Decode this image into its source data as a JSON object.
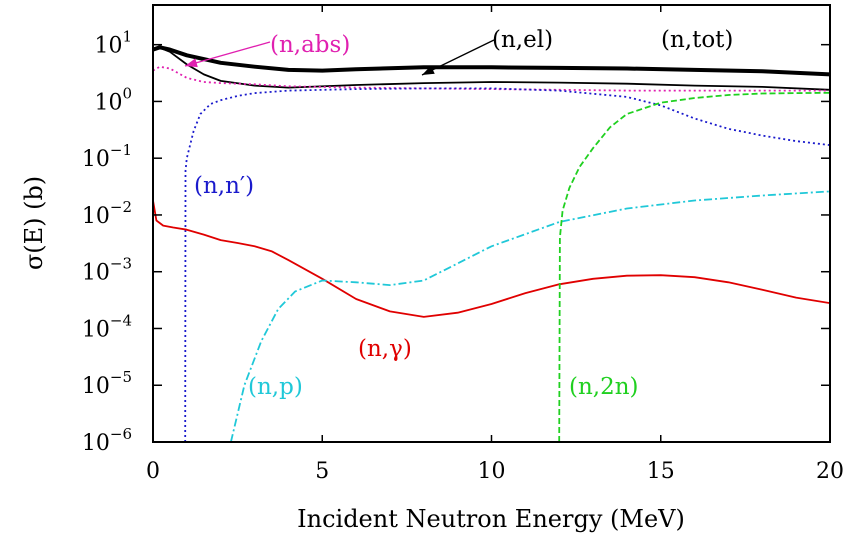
{
  "chart_data": {
    "type": "line",
    "title": "",
    "xlabel": "Incident Neutron Energy (MeV)",
    "ylabel": "σ(E) (b)",
    "xlim": [
      0,
      20
    ],
    "ylim": [
      1e-06,
      50
    ],
    "yscale": "log",
    "grid": false,
    "x_ticks": [
      {
        "value": 0,
        "label": "0"
      },
      {
        "value": 5,
        "label": "5"
      },
      {
        "value": 10,
        "label": "10"
      },
      {
        "value": 15,
        "label": "15"
      },
      {
        "value": 20,
        "label": "20"
      }
    ],
    "y_ticks": [
      {
        "value": 1e-06,
        "base": "10",
        "exp": "−6"
      },
      {
        "value": 1e-05,
        "base": "10",
        "exp": "−5"
      },
      {
        "value": 0.0001,
        "base": "10",
        "exp": "−4"
      },
      {
        "value": 0.001,
        "base": "10",
        "exp": "−3"
      },
      {
        "value": 0.01,
        "base": "10",
        "exp": "−2"
      },
      {
        "value": 0.1,
        "base": "10",
        "exp": "−1"
      },
      {
        "value": 1,
        "base": "10",
        "exp": "0"
      },
      {
        "value": 10,
        "base": "10",
        "exp": "1"
      }
    ],
    "series": [
      {
        "name": "(n,tot)",
        "color": "#000000",
        "dash": "solid",
        "width": "thick",
        "x": [
          0,
          0.2,
          0.5,
          1,
          2,
          3,
          4,
          5,
          6,
          8,
          10,
          12,
          14,
          16,
          18,
          20
        ],
        "y": [
          8.2,
          9.0,
          8.2,
          6.5,
          4.8,
          4.1,
          3.6,
          3.5,
          3.7,
          4.0,
          4.0,
          3.9,
          3.8,
          3.6,
          3.4,
          3.0
        ]
      },
      {
        "name": "(n,el)",
        "color": "#000000",
        "dash": "solid",
        "width": "thin",
        "x": [
          0,
          0.2,
          0.5,
          1,
          1.5,
          2,
          3,
          4,
          6,
          8,
          10,
          12,
          14,
          16,
          18,
          20
        ],
        "y": [
          8.0,
          8.8,
          7.5,
          4.5,
          3.0,
          2.3,
          1.9,
          1.75,
          1.95,
          2.1,
          2.2,
          2.15,
          2.05,
          1.9,
          1.8,
          1.6
        ]
      },
      {
        "name": "(n,abs)",
        "color": "#e020b0",
        "dash": "dotted",
        "width": "thin",
        "x": [
          0,
          0.2,
          0.5,
          1,
          1.5,
          2,
          3,
          4,
          6,
          8,
          10,
          12,
          14,
          16,
          18,
          20
        ],
        "y": [
          3.5,
          4.1,
          3.8,
          2.6,
          2.2,
          2.1,
          2.0,
          1.85,
          1.75,
          1.7,
          1.65,
          1.6,
          1.55,
          1.55,
          1.55,
          1.55
        ]
      },
      {
        "name": "(n,n′)",
        "color": "#1a1acc",
        "dash": "dotted",
        "width": "thin",
        "x": [
          0.95,
          0.96,
          1.0,
          1.2,
          1.4,
          1.7,
          2,
          2.5,
          3,
          4,
          6,
          8,
          10,
          12,
          14,
          15,
          16,
          17,
          18,
          19,
          20
        ],
        "y": [
          1e-06,
          0.06,
          0.1,
          0.3,
          0.6,
          0.9,
          1.05,
          1.25,
          1.4,
          1.55,
          1.65,
          1.7,
          1.7,
          1.55,
          1.2,
          0.85,
          0.5,
          0.33,
          0.25,
          0.2,
          0.17
        ]
      },
      {
        "name": "(n,γ)",
        "color": "#e00000",
        "dash": "solid",
        "width": "thin",
        "x": [
          0,
          0.1,
          0.3,
          0.6,
          1,
          1.5,
          2,
          2.5,
          3,
          3.5,
          4,
          5,
          6,
          7,
          8,
          9,
          10,
          11,
          12,
          13,
          14,
          15,
          16,
          17,
          18,
          19,
          20
        ],
        "y": [
          0.018,
          0.008,
          0.0065,
          0.006,
          0.0055,
          0.0045,
          0.0036,
          0.0032,
          0.0028,
          0.0023,
          0.0016,
          0.00075,
          0.00033,
          0.0002,
          0.00016,
          0.00019,
          0.00027,
          0.00042,
          0.0006,
          0.00075,
          0.00085,
          0.00087,
          0.0008,
          0.00065,
          0.00048,
          0.00035,
          0.00028
        ]
      },
      {
        "name": "(n,p)",
        "color": "#20c8d8",
        "dash": "dashdot",
        "width": "thin",
        "x": [
          2.3,
          2.7,
          3.2,
          3.7,
          4.2,
          5,
          6,
          7,
          8,
          9,
          10,
          12,
          14,
          16,
          18,
          20
        ],
        "y": [
          1e-06,
          1e-05,
          6e-05,
          0.00022,
          0.00045,
          0.0007,
          0.00065,
          0.00058,
          0.0007,
          0.0014,
          0.0028,
          0.0075,
          0.013,
          0.018,
          0.022,
          0.026
        ]
      },
      {
        "name": "(n,2n)",
        "color": "#20d020",
        "dash": "dashed",
        "width": "thin",
        "x": [
          12.0,
          12.02,
          12.1,
          12.3,
          12.6,
          13.0,
          13.5,
          14,
          15,
          16,
          17,
          18,
          19,
          20
        ],
        "y": [
          1e-06,
          0.004,
          0.012,
          0.03,
          0.07,
          0.15,
          0.35,
          0.6,
          0.95,
          1.15,
          1.3,
          1.38,
          1.4,
          1.42
        ]
      }
    ],
    "annotations": [
      {
        "text": "(n,abs)",
        "color": "#e020b0",
        "arrow": true
      },
      {
        "text": "(n,el)",
        "color": "#000000",
        "arrow": true
      },
      {
        "text": "(n,tot)",
        "color": "#000000",
        "arrow": false
      },
      {
        "text": "(n,n′)",
        "color": "#1a1acc",
        "arrow": false
      },
      {
        "text": "(n,γ)",
        "color": "#e00000",
        "arrow": false
      },
      {
        "text": "(n,p)",
        "color": "#20c8d8",
        "arrow": false
      },
      {
        "text": "(n,2n)",
        "color": "#20d020",
        "arrow": false
      }
    ]
  }
}
